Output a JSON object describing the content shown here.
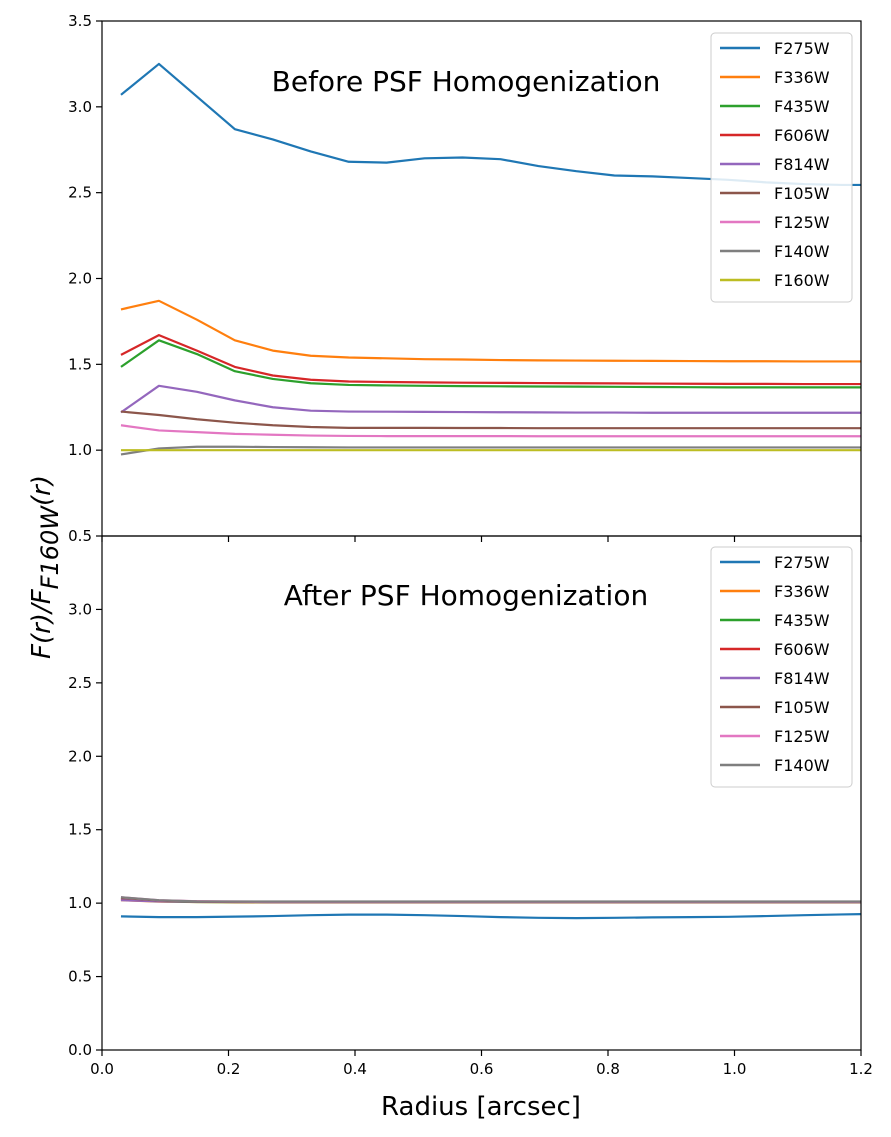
{
  "figure": {
    "xlabel": "Radius [arcsec]",
    "ylabel": "F(r)/F",
    "ylabel_sub": "F160W",
    "ylabel_tail": "(r)"
  },
  "chart_data": [
    {
      "type": "line",
      "title": "Before PSF Homogenization",
      "xlim": [
        0.0,
        1.2
      ],
      "ylim": [
        0.5,
        3.5
      ],
      "xticks": [
        0.0,
        0.2,
        0.4,
        0.6,
        0.8,
        1.0,
        1.2
      ],
      "xtick_labels": [
        "0.0",
        "0.2",
        "0.4",
        "0.6",
        "0.8",
        "1.0",
        "1.2"
      ],
      "yticks": [
        0.5,
        1.0,
        1.5,
        2.0,
        2.5,
        3.0,
        3.5
      ],
      "ytick_labels": [
        "0.5",
        "1.0",
        "1.5",
        "2.0",
        "2.5",
        "3.0",
        "3.5"
      ],
      "legend_position": "top-right",
      "x": [
        0.03,
        0.09,
        0.15,
        0.21,
        0.27,
        0.33,
        0.39,
        0.45,
        0.51,
        0.57,
        0.63,
        0.69,
        0.75,
        0.81,
        0.87,
        0.93,
        0.99,
        1.05,
        1.11,
        1.17,
        1.2
      ],
      "series": [
        {
          "name": "F275W",
          "color": "#1f77b4",
          "values": [
            3.07,
            3.25,
            3.06,
            2.87,
            2.81,
            2.74,
            2.68,
            2.675,
            2.7,
            2.705,
            2.695,
            2.655,
            2.625,
            2.6,
            2.595,
            2.585,
            2.575,
            2.56,
            2.55,
            2.545,
            2.545
          ]
        },
        {
          "name": "F336W",
          "color": "#ff7f0e",
          "values": [
            1.82,
            1.87,
            1.76,
            1.64,
            1.58,
            1.55,
            1.54,
            1.535,
            1.53,
            1.528,
            1.525,
            1.523,
            1.522,
            1.521,
            1.52,
            1.519,
            1.518,
            1.518,
            1.517,
            1.517,
            1.517
          ]
        },
        {
          "name": "F435W",
          "color": "#2ca02c",
          "values": [
            1.485,
            1.64,
            1.56,
            1.46,
            1.415,
            1.39,
            1.38,
            1.377,
            1.375,
            1.373,
            1.372,
            1.371,
            1.37,
            1.369,
            1.368,
            1.367,
            1.366,
            1.366,
            1.366,
            1.366,
            1.366
          ]
        },
        {
          "name": "F606W",
          "color": "#d62728",
          "values": [
            1.555,
            1.67,
            1.58,
            1.485,
            1.435,
            1.41,
            1.4,
            1.397,
            1.395,
            1.393,
            1.392,
            1.391,
            1.39,
            1.389,
            1.388,
            1.387,
            1.386,
            1.386,
            1.385,
            1.385,
            1.385
          ]
        },
        {
          "name": "F814W",
          "color": "#9467bd",
          "values": [
            1.22,
            1.375,
            1.34,
            1.29,
            1.25,
            1.23,
            1.225,
            1.224,
            1.223,
            1.222,
            1.221,
            1.22,
            1.219,
            1.219,
            1.218,
            1.218,
            1.218,
            1.218,
            1.218,
            1.218,
            1.218
          ]
        },
        {
          "name": "F105W",
          "color": "#8c564b",
          "values": [
            1.225,
            1.205,
            1.18,
            1.16,
            1.145,
            1.135,
            1.13,
            1.13,
            1.13,
            1.129,
            1.129,
            1.128,
            1.128,
            1.128,
            1.128,
            1.128,
            1.128,
            1.128,
            1.128,
            1.128,
            1.128
          ]
        },
        {
          "name": "F125W",
          "color": "#e377c2",
          "values": [
            1.145,
            1.115,
            1.105,
            1.095,
            1.09,
            1.085,
            1.083,
            1.082,
            1.082,
            1.082,
            1.082,
            1.081,
            1.081,
            1.081,
            1.081,
            1.081,
            1.081,
            1.081,
            1.081,
            1.081,
            1.081
          ]
        },
        {
          "name": "F140W",
          "color": "#7f7f7f",
          "values": [
            0.975,
            1.01,
            1.02,
            1.02,
            1.018,
            1.017,
            1.016,
            1.016,
            1.016,
            1.016,
            1.016,
            1.016,
            1.016,
            1.016,
            1.016,
            1.016,
            1.016,
            1.016,
            1.016,
            1.016,
            1.016
          ]
        },
        {
          "name": "F160W",
          "color": "#bcbd22",
          "values": [
            1.0,
            1.0,
            1.0,
            1.0,
            1.0,
            1.0,
            1.0,
            1.0,
            1.0,
            1.0,
            1.0,
            1.0,
            1.0,
            1.0,
            1.0,
            1.0,
            1.0,
            1.0,
            1.0,
            1.0,
            1.0
          ]
        }
      ]
    },
    {
      "type": "line",
      "title": "After PSF Homogenization",
      "xlim": [
        0.0,
        1.2
      ],
      "ylim": [
        0.0,
        3.5
      ],
      "xticks": [
        0.0,
        0.2,
        0.4,
        0.6,
        0.8,
        1.0,
        1.2
      ],
      "xtick_labels": [
        "0.0",
        "0.2",
        "0.4",
        "0.6",
        "0.8",
        "1.0",
        "1.2"
      ],
      "yticks": [
        0.0,
        0.5,
        1.0,
        1.5,
        2.0,
        2.5,
        3.0
      ],
      "ytick_labels": [
        "0.0",
        "0.5",
        "1.0",
        "1.5",
        "2.0",
        "2.5",
        "3.0"
      ],
      "legend_position": "top-right",
      "x": [
        0.03,
        0.09,
        0.15,
        0.21,
        0.27,
        0.33,
        0.39,
        0.45,
        0.51,
        0.57,
        0.63,
        0.69,
        0.75,
        0.81,
        0.87,
        0.93,
        0.99,
        1.05,
        1.11,
        1.17,
        1.2
      ],
      "series": [
        {
          "name": "F275W",
          "color": "#1f77b4",
          "values": [
            0.91,
            0.905,
            0.905,
            0.908,
            0.912,
            0.918,
            0.922,
            0.922,
            0.918,
            0.912,
            0.905,
            0.9,
            0.898,
            0.9,
            0.903,
            0.905,
            0.907,
            0.912,
            0.918,
            0.923,
            0.925
          ]
        },
        {
          "name": "F336W",
          "color": "#ff7f0e",
          "values": [
            1.02,
            1.01,
            1.008,
            1.006,
            1.005,
            1.005,
            1.005,
            1.005,
            1.005,
            1.005,
            1.005,
            1.005,
            1.005,
            1.005,
            1.005,
            1.005,
            1.005,
            1.005,
            1.005,
            1.005,
            1.005
          ]
        },
        {
          "name": "F435W",
          "color": "#2ca02c",
          "values": [
            1.025,
            1.012,
            1.008,
            1.007,
            1.006,
            1.006,
            1.006,
            1.006,
            1.006,
            1.006,
            1.006,
            1.006,
            1.006,
            1.006,
            1.006,
            1.006,
            1.006,
            1.006,
            1.006,
            1.006,
            1.006
          ]
        },
        {
          "name": "F606W",
          "color": "#d62728",
          "values": [
            1.03,
            1.015,
            1.01,
            1.008,
            1.007,
            1.007,
            1.007,
            1.007,
            1.007,
            1.007,
            1.007,
            1.007,
            1.007,
            1.007,
            1.007,
            1.007,
            1.007,
            1.007,
            1.007,
            1.007,
            1.007
          ]
        },
        {
          "name": "F814W",
          "color": "#9467bd",
          "values": [
            1.02,
            1.012,
            1.01,
            1.009,
            1.008,
            1.008,
            1.008,
            1.008,
            1.008,
            1.008,
            1.008,
            1.008,
            1.008,
            1.008,
            1.008,
            1.008,
            1.008,
            1.008,
            1.008,
            1.008,
            1.008
          ]
        },
        {
          "name": "F105W",
          "color": "#8c564b",
          "values": [
            1.035,
            1.018,
            1.012,
            1.01,
            1.01,
            1.01,
            1.01,
            1.01,
            1.01,
            1.01,
            1.01,
            1.01,
            1.01,
            1.01,
            1.01,
            1.01,
            1.01,
            1.01,
            1.01,
            1.01,
            1.01
          ]
        },
        {
          "name": "F125W",
          "color": "#e377c2",
          "values": [
            1.04,
            1.02,
            1.013,
            1.011,
            1.01,
            1.01,
            1.01,
            1.01,
            1.01,
            1.01,
            1.01,
            1.01,
            1.01,
            1.01,
            1.01,
            1.01,
            1.01,
            1.01,
            1.01,
            1.01,
            1.01
          ]
        },
        {
          "name": "F140W",
          "color": "#7f7f7f",
          "values": [
            1.04,
            1.02,
            1.012,
            1.011,
            1.011,
            1.011,
            1.011,
            1.011,
            1.011,
            1.011,
            1.011,
            1.011,
            1.011,
            1.011,
            1.011,
            1.011,
            1.011,
            1.011,
            1.011,
            1.011,
            1.011
          ]
        }
      ]
    }
  ]
}
